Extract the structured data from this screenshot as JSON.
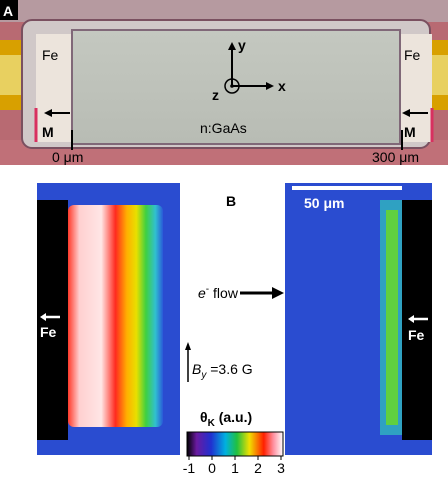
{
  "panel_a": {
    "label": "A",
    "fe_left": "Fe",
    "fe_right": "Fe",
    "m_left": "M",
    "m_right": "M",
    "axis_y": "y",
    "axis_x": "x",
    "axis_z": "z",
    "material": "n:GaAs",
    "scale_start": "0 μm",
    "scale_end": "300 μm"
  },
  "panel_b": {
    "label": "B",
    "scale_bar": "50 μm",
    "flow_base": "e",
    "flow_sup": "-",
    "flow_rest": " flow",
    "fe_left": "Fe",
    "fe_right": "Fe",
    "field_base": "B",
    "field_sub": "y",
    "field_rest": " =3.6 G",
    "colorbar_base": "θ",
    "colorbar_sub": "K",
    "colorbar_rest": " (a.u.)",
    "colorbar_ticks": [
      -1,
      0,
      1,
      2,
      3
    ]
  }
}
